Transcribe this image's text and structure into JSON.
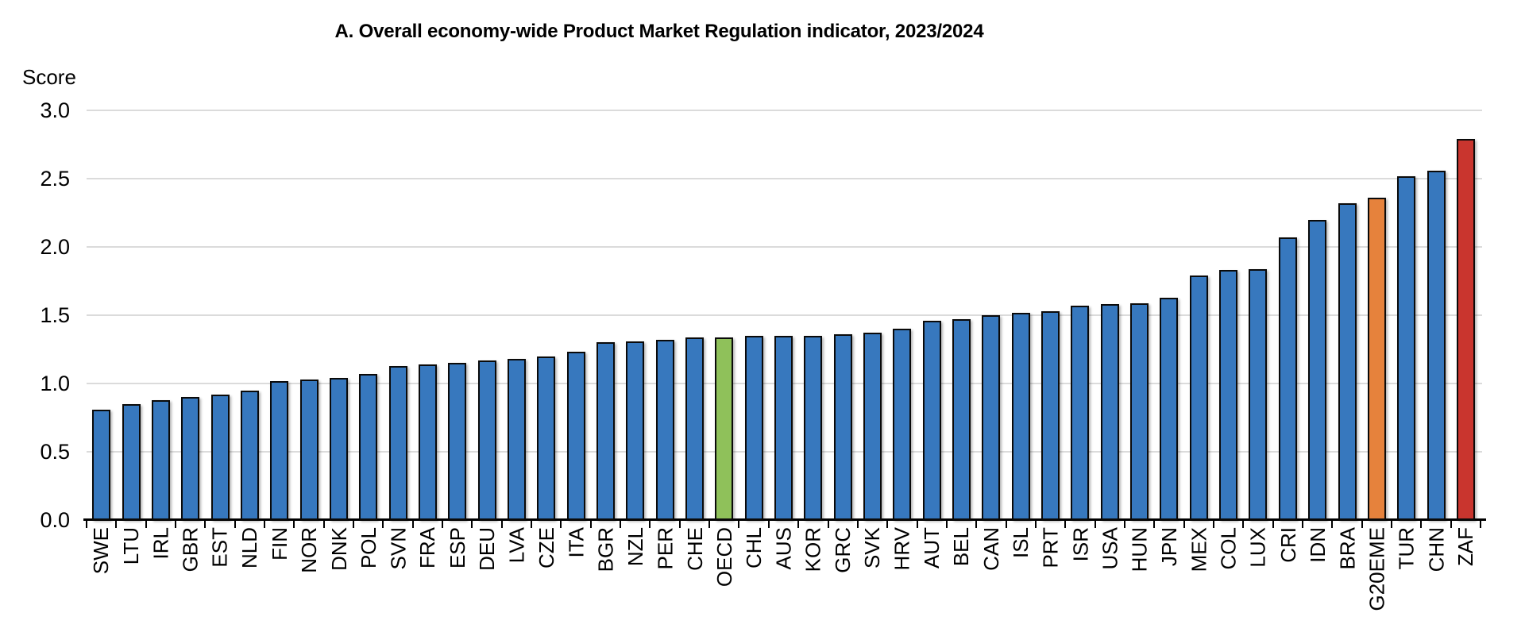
{
  "page": {
    "background": "#ffffff"
  },
  "chart_data": {
    "type": "bar",
    "title": "A. Overall economy-wide Product Market Regulation indicator, 2023/2024",
    "ylabel": "Score",
    "xlabel": "",
    "ylim": [
      0,
      3.0
    ],
    "ytick_step": 0.5,
    "ytick_labels": [
      "0.0",
      "0.5",
      "1.0",
      "1.5",
      "2.0",
      "2.5",
      "3.0"
    ],
    "grid": "horizontal",
    "legend_position": "none",
    "categories": [
      "SWE",
      "LTU",
      "IRL",
      "GBR",
      "EST",
      "NLD",
      "FIN",
      "NOR",
      "DNK",
      "POL",
      "SVN",
      "FRA",
      "ESP",
      "DEU",
      "LVA",
      "CZE",
      "ITA",
      "BGR",
      "NZL",
      "PER",
      "CHE",
      "OECD",
      "CHL",
      "AUS",
      "KOR",
      "GRC",
      "SVK",
      "HRV",
      "AUT",
      "BEL",
      "CAN",
      "ISL",
      "PRT",
      "ISR",
      "USA",
      "HUN",
      "JPN",
      "MEX",
      "COL",
      "LUX",
      "CRI",
      "IDN",
      "BRA",
      "G20EME",
      "TUR",
      "CHN",
      "ZAF"
    ],
    "values": [
      0.81,
      0.85,
      0.88,
      0.9,
      0.92,
      0.95,
      1.02,
      1.03,
      1.04,
      1.07,
      1.13,
      1.14,
      1.15,
      1.17,
      1.18,
      1.2,
      1.23,
      1.3,
      1.31,
      1.32,
      1.34,
      1.34,
      1.35,
      1.35,
      1.35,
      1.36,
      1.37,
      1.4,
      1.46,
      1.47,
      1.5,
      1.52,
      1.53,
      1.57,
      1.58,
      1.59,
      1.63,
      1.79,
      1.83,
      1.84,
      2.07,
      2.2,
      2.32,
      2.36,
      2.52,
      2.56,
      2.79
    ],
    "bar_colors": {
      "default": "#3778BE",
      "OECD": "#8FC15A",
      "G20EME": "#E6823C",
      "ZAF": "#C9352E"
    },
    "bar_border_color": "#0a0a0a",
    "gridline_color": "#DBDBDB",
    "axis_color": "#000000"
  }
}
